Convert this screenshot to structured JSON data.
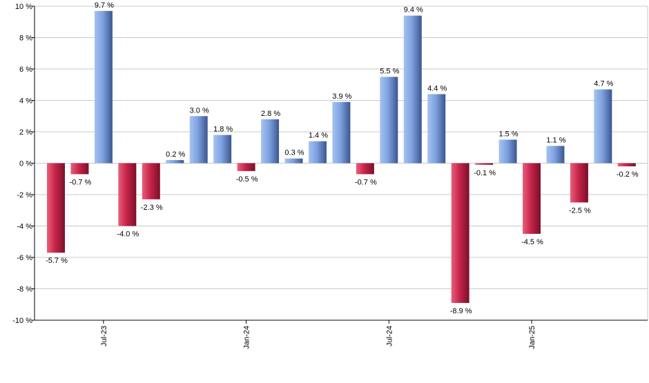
{
  "chart_data": {
    "type": "bar",
    "title": "",
    "xlabel": "",
    "ylabel": "",
    "ylim": [
      -10,
      10
    ],
    "yticks": [
      10,
      8,
      6,
      4,
      2,
      0,
      -2,
      -4,
      -6,
      -8,
      -10
    ],
    "ytick_labels": [
      "10 %",
      "8 %",
      "6 %",
      "4 %",
      "2 %",
      "0 %",
      "-2 %",
      "-4 %",
      "-6 %",
      "-8 %",
      "-10 %"
    ],
    "grid": true,
    "legend": "none",
    "categories": [
      "2023-05",
      "2023-06",
      "2023-07",
      "2023-08",
      "2023-09",
      "2023-10",
      "2023-11",
      "2023-12",
      "2024-01",
      "2024-02",
      "2024-03",
      "2024-04",
      "2024-05",
      "2024-06",
      "2024-07",
      "2024-08",
      "2024-09",
      "2024-10",
      "2024-11",
      "2024-12",
      "2025-01",
      "2025-02",
      "2025-03",
      "2025-04",
      "2025-05"
    ],
    "values": [
      -5.7,
      -0.7,
      9.7,
      -4.0,
      -2.3,
      0.2,
      3.0,
      1.8,
      -0.5,
      2.8,
      0.3,
      1.4,
      3.9,
      -0.7,
      5.5,
      9.4,
      4.4,
      -8.9,
      -0.1,
      1.5,
      -4.5,
      1.1,
      -2.5,
      4.7,
      -0.2
    ],
    "value_labels": [
      "-5.7 %",
      "-0.7 %",
      "9.7 %",
      "-4.0 %",
      "-2.3 %",
      "0.2 %",
      "3.0 %",
      "1.8 %",
      "-0.5 %",
      "2.8 %",
      "0.3 %",
      "1.4 %",
      "3.9 %",
      "-0.7 %",
      "5.5 %",
      "9.4 %",
      "4.4 %",
      "-8.9 %",
      "-0.1 %",
      "1.5 %",
      "-4.5 %",
      "1.1 %",
      "-2.5 %",
      "4.7 %",
      "-0.2 %"
    ],
    "xtick_labels": [
      {
        "index": 2,
        "label": "Jul-23"
      },
      {
        "index": 8,
        "label": "Jan-24"
      },
      {
        "index": 14,
        "label": "Jul-24"
      },
      {
        "index": 20,
        "label": "Jan-25"
      }
    ],
    "colors": {
      "positive": "#6f95d8",
      "negative": "#c8244a",
      "grid": "#c8c8c8",
      "axis": "#000000"
    }
  }
}
